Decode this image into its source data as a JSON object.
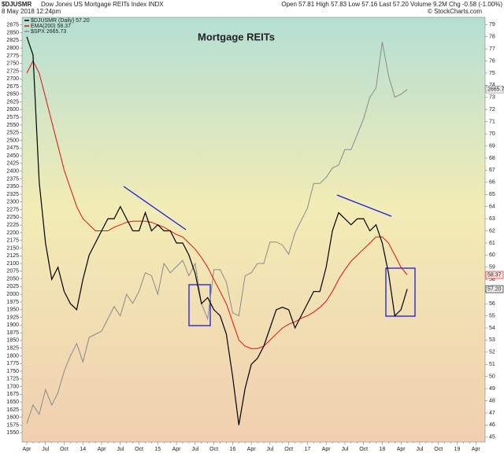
{
  "chart_data": {
    "type": "line",
    "symbol_title": "$DJUSMR",
    "subtitle": "Dow Jones US Mortgage REITs Index  INDX",
    "date": "8 May 2018 12:24pm",
    "quote": "Open 57.81  High 57.83  Low 57.16  Last 57.20  Volume 9.2M  Chg -0.58 (-1.00%)",
    "credit": "© StockCharts.com",
    "title": "Mortgage REITs",
    "categories": [
      "Apr",
      null,
      null,
      "Jul",
      null,
      null,
      "Oct",
      null,
      null,
      "14",
      null,
      null,
      "Apr",
      null,
      null,
      "Jul",
      null,
      null,
      "Oct",
      null,
      null,
      "15",
      null,
      null,
      "Apr",
      null,
      null,
      "Jul",
      null,
      null,
      "Oct",
      null,
      null,
      "16",
      null,
      null,
      "Apr",
      null,
      null,
      "Jul",
      null,
      null,
      "Oct",
      null,
      null,
      "17",
      null,
      null,
      "Apr",
      null,
      null,
      "Jul",
      null,
      null,
      "Oct",
      null,
      null,
      "18",
      null,
      null,
      "Apr",
      null,
      null,
      "Jul",
      null,
      null,
      "Oct",
      null,
      null,
      "19",
      null,
      null,
      "Apr"
    ],
    "series": [
      {
        "name": "$DJUSMR (Daily) 57.20",
        "color": "#000000",
        "axis": "y2",
        "last_label": "57.20",
        "values": [
          78,
          76.5,
          66,
          61,
          58,
          59,
          57,
          56,
          55.5,
          58,
          60,
          61,
          62,
          63,
          63,
          64,
          63,
          62,
          62,
          63.5,
          62,
          62.5,
          62,
          62,
          61,
          61,
          60,
          58.5,
          56,
          56.5,
          55.5,
          55,
          53.5,
          50,
          46,
          49,
          51,
          51.5,
          52.5,
          54,
          55.5,
          55.7,
          55.5,
          54,
          55,
          56,
          57,
          57,
          59,
          62,
          63.5,
          63,
          62.5,
          63,
          63,
          62,
          62.5,
          61,
          58.5,
          55,
          55.5,
          57.2,
          null,
          null,
          null,
          null,
          null,
          null,
          null,
          null,
          null,
          null,
          null
        ]
      },
      {
        "name": "EMA(200) 58.37",
        "color": "#e01010",
        "axis": "y2",
        "last_label": "58.37",
        "values": [
          75,
          76,
          75,
          73,
          71,
          69,
          67,
          65.5,
          64,
          63,
          62.5,
          62,
          62,
          62,
          62.3,
          62.5,
          62.7,
          62.8,
          62.8,
          62.8,
          62.7,
          62.5,
          62.3,
          62,
          61.7,
          61.5,
          61,
          60.5,
          59.8,
          59,
          58,
          57,
          56,
          54.5,
          53,
          52.5,
          52.3,
          52.3,
          52.5,
          53,
          53.5,
          54,
          54.3,
          54.5,
          54.8,
          55,
          55.3,
          55.7,
          56.2,
          57,
          58,
          58.8,
          59.5,
          60,
          60.5,
          61,
          61.5,
          61.5,
          61,
          60,
          59,
          58.37,
          null,
          null,
          null,
          null,
          null,
          null,
          null,
          null,
          null,
          null,
          null
        ]
      },
      {
        "name": "$SPX 2665.73",
        "color": "#8a8a8a",
        "axis": "y",
        "last_label": "2665.7",
        "values": [
          1580,
          1640,
          1610,
          1690,
          1640,
          1680,
          1750,
          1800,
          1840,
          1780,
          1860,
          1870,
          1880,
          1920,
          1960,
          1930,
          2000,
          1970,
          2010,
          2070,
          2060,
          2000,
          2100,
          2070,
          2090,
          2110,
          2060,
          2100,
          1970,
          1920,
          2080,
          2080,
          2040,
          1940,
          1930,
          2060,
          2070,
          2100,
          2100,
          2170,
          2170,
          2160,
          2130,
          2200,
          2240,
          2280,
          2360,
          2360,
          2380,
          2410,
          2420,
          2470,
          2470,
          2520,
          2570,
          2640,
          2670,
          2820,
          2710,
          2640,
          2650,
          2665.73,
          null,
          null,
          null,
          null,
          null,
          null,
          null,
          null,
          null,
          null,
          null
        ]
      }
    ],
    "ylim": [
      1520,
      2900
    ],
    "yticks": [
      1550,
      1575,
      1600,
      1625,
      1650,
      1675,
      1700,
      1725,
      1750,
      1775,
      1800,
      1825,
      1850,
      1875,
      1900,
      1925,
      1950,
      1975,
      2000,
      2025,
      2050,
      2075,
      2100,
      2125,
      2150,
      2175,
      2200,
      2225,
      2250,
      2275,
      2300,
      2325,
      2350,
      2375,
      2400,
      2425,
      2450,
      2475,
      2500,
      2525,
      2550,
      2575,
      2600,
      2625,
      2650,
      2675,
      2700,
      2725,
      2750,
      2775,
      2800,
      2825,
      2850,
      2875
    ],
    "y2lim": [
      44.6,
      79.6
    ],
    "y2ticks": [
      45,
      46,
      47,
      48,
      49,
      50,
      51,
      52,
      53,
      54,
      55,
      56,
      57,
      58,
      59,
      60,
      61,
      62,
      63,
      64,
      65,
      66,
      67,
      68,
      69,
      70,
      71,
      72,
      73,
      74,
      75,
      76,
      77,
      78,
      79
    ],
    "grid": false
  }
}
